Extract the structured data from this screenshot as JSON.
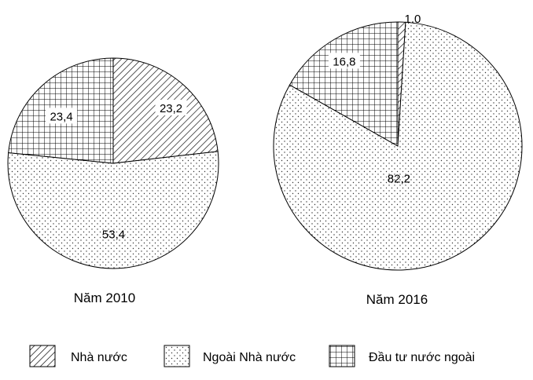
{
  "chart_data": [
    {
      "type": "pie",
      "title": "Năm 2010",
      "categories": [
        "Nhà nước",
        "Ngoài Nhà nước",
        "Đầu tư nước ngoài"
      ],
      "values": [
        23.2,
        53.4,
        23.4
      ],
      "labels": [
        "23,2",
        "53,4",
        "23,4"
      ]
    },
    {
      "type": "pie",
      "title": "Năm 2016",
      "categories": [
        "Nhà nước",
        "Ngoài Nhà nước",
        "Đầu tư nước ngoài"
      ],
      "values": [
        1.0,
        82.2,
        16.8
      ],
      "labels": [
        "1,0",
        "82,2",
        "16,8"
      ]
    }
  ],
  "legend": [
    {
      "label": "Nhà nước",
      "pattern": "hatch"
    },
    {
      "label": "Ngoài Nhà nước",
      "pattern": "dots"
    },
    {
      "label": "Đầu tư nước ngoài",
      "pattern": "grid"
    }
  ]
}
